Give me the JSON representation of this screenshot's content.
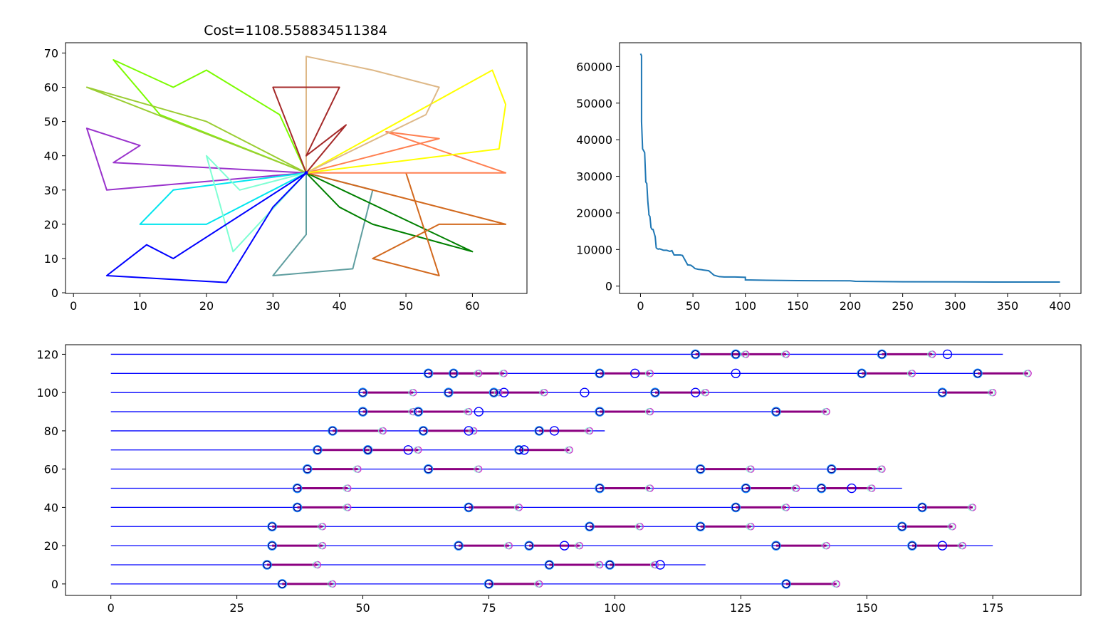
{
  "chart_data": [
    {
      "type": "line",
      "title": "Cost=1108.558834511384",
      "xlabel": "",
      "ylabel": "",
      "xlim": [
        -1.2,
        68.2
      ],
      "ylim": [
        -0.2,
        73.0
      ],
      "x_ticks": [
        "0",
        "10",
        "20",
        "30",
        "40",
        "50",
        "60"
      ],
      "y_ticks": [
        "0",
        "10",
        "20",
        "30",
        "40",
        "50",
        "60",
        "70"
      ],
      "depot": [
        35,
        35
      ],
      "routes": [
        {
          "color": "#7cfc00",
          "points": [
            [
              35,
              35
            ],
            [
              31,
              52
            ],
            [
              20,
              65
            ],
            [
              15,
              60
            ],
            [
              6,
              68
            ],
            [
              13,
              52
            ],
            [
              35,
              35
            ]
          ]
        },
        {
          "color": "#9acd32",
          "points": [
            [
              35,
              35
            ],
            [
              20,
              50
            ],
            [
              2,
              60
            ],
            [
              35,
              35
            ]
          ]
        },
        {
          "color": "#9932cc",
          "points": [
            [
              35,
              35
            ],
            [
              6,
              38
            ],
            [
              10,
              43
            ],
            [
              2,
              48
            ],
            [
              5,
              30
            ],
            [
              35,
              35
            ]
          ]
        },
        {
          "color": "#00e5ee",
          "points": [
            [
              35,
              35
            ],
            [
              15,
              30
            ],
            [
              10,
              20
            ],
            [
              20,
              20
            ],
            [
              35,
              35
            ]
          ]
        },
        {
          "color": "#7fffd4",
          "points": [
            [
              35,
              35
            ],
            [
              25,
              30
            ],
            [
              20,
              40
            ],
            [
              24,
              12
            ],
            [
              35,
              35
            ]
          ]
        },
        {
          "color": "#0000ff",
          "points": [
            [
              35,
              35
            ],
            [
              15,
              10
            ],
            [
              11,
              14
            ],
            [
              5,
              5
            ],
            [
              23,
              3
            ],
            [
              30,
              25
            ],
            [
              35,
              35
            ]
          ]
        },
        {
          "color": "#5f9ea0",
          "points": [
            [
              35,
              35
            ],
            [
              35,
              17
            ],
            [
              30,
              5
            ],
            [
              42,
              7
            ],
            [
              45,
              30
            ],
            [
              35,
              35
            ]
          ]
        },
        {
          "color": "#008000",
          "points": [
            [
              35,
              35
            ],
            [
              40,
              25
            ],
            [
              45,
              20
            ],
            [
              60,
              12
            ],
            [
              35,
              35
            ]
          ]
        },
        {
          "color": "#d2691e",
          "points": [
            [
              35,
              35
            ],
            [
              65,
              20
            ],
            [
              55,
              20
            ],
            [
              45,
              10
            ],
            [
              55,
              5
            ],
            [
              50,
              35
            ]
          ]
        },
        {
          "color": "#ff7f50",
          "points": [
            [
              35,
              35
            ],
            [
              55,
              45
            ],
            [
              47,
              47
            ],
            [
              65,
              35
            ],
            [
              35,
              35
            ]
          ]
        },
        {
          "color": "#ffff00",
          "points": [
            [
              35,
              35
            ],
            [
              63,
              65
            ],
            [
              65,
              55
            ],
            [
              64,
              42
            ],
            [
              35,
              35
            ]
          ]
        },
        {
          "color": "#deb887",
          "points": [
            [
              35,
              35
            ],
            [
              35,
              69
            ],
            [
              45,
              65
            ],
            [
              55,
              60
            ],
            [
              53,
              52
            ],
            [
              35,
              35
            ]
          ]
        },
        {
          "color": "#a52a2a",
          "points": [
            [
              35,
              35
            ],
            [
              30,
              60
            ],
            [
              40,
              60
            ],
            [
              35,
              40
            ],
            [
              41,
              49
            ],
            [
              35,
              35
            ]
          ]
        }
      ]
    },
    {
      "type": "line",
      "title": "",
      "xlabel": "",
      "ylabel": "",
      "xlim": [
        -20,
        420
      ],
      "ylim": [
        -2000,
        66500
      ],
      "x_ticks": [
        "0",
        "50",
        "100",
        "150",
        "200",
        "250",
        "300",
        "350",
        "400"
      ],
      "y_ticks": [
        "0",
        "10000",
        "20000",
        "30000",
        "40000",
        "50000",
        "60000"
      ],
      "color": "#1f77b4",
      "series": [
        {
          "x": [
            0,
            1,
            1,
            2,
            3,
            4,
            5,
            5,
            6,
            7,
            8,
            8,
            9,
            10,
            11,
            12,
            13,
            14,
            15,
            16,
            17,
            18,
            20,
            22,
            25,
            28,
            30,
            32,
            35,
            38,
            40,
            45,
            48,
            50,
            52,
            55,
            58,
            60,
            65,
            68,
            70,
            75,
            80,
            90,
            100,
            100,
            120,
            150,
            200,
            205,
            250,
            300,
            350,
            400
          ],
          "y": [
            63500,
            63000,
            45000,
            37500,
            37000,
            36500,
            29000,
            28500,
            28000,
            23000,
            20000,
            19500,
            19000,
            16000,
            15500,
            15500,
            14500,
            13500,
            10500,
            10200,
            10100,
            10200,
            10000,
            9800,
            9800,
            9500,
            9700,
            8500,
            8500,
            8500,
            8400,
            5800,
            5700,
            5300,
            4800,
            4600,
            4500,
            4400,
            4200,
            3500,
            3000,
            2600,
            2500,
            2500,
            2400,
            1700,
            1600,
            1500,
            1450,
            1300,
            1200,
            1150,
            1120,
            1108
          ]
        }
      ]
    },
    {
      "type": "timeline",
      "title": "",
      "xlabel": "",
      "ylabel": "",
      "xlim": [
        -9,
        192.5
      ],
      "ylim": [
        -6,
        125
      ],
      "x_ticks": [
        "0",
        "25",
        "50",
        "75",
        "100",
        "125",
        "150",
        "175"
      ],
      "y_ticks": [
        "0",
        "20",
        "40",
        "60",
        "80",
        "100",
        "120"
      ],
      "rows": [
        {
          "y": 0,
          "end": 144,
          "segs": [
            [
              34,
              44
            ],
            [
              75,
              85
            ],
            [
              134,
              144
            ]
          ],
          "extra": []
        },
        {
          "y": 10,
          "end": 118,
          "segs": [
            [
              31,
              41
            ],
            [
              87,
              97
            ],
            [
              99,
              108
            ]
          ],
          "extra": [
            [
              109,
              "#0000ff"
            ]
          ]
        },
        {
          "y": 20,
          "end": 175,
          "segs": [
            [
              32,
              42
            ],
            [
              69,
              79
            ],
            [
              83,
              93
            ],
            [
              132,
              142
            ],
            [
              159,
              169
            ]
          ],
          "extra": [
            [
              90,
              "#0000ff"
            ],
            [
              165,
              "#0000ff"
            ]
          ]
        },
        {
          "y": 30,
          "end": 167,
          "segs": [
            [
              32,
              42
            ],
            [
              95,
              105
            ],
            [
              117,
              127
            ],
            [
              157,
              167
            ]
          ],
          "extra": []
        },
        {
          "y": 40,
          "end": 171,
          "segs": [
            [
              37,
              47
            ],
            [
              71,
              81
            ],
            [
              124,
              134
            ],
            [
              161,
              171
            ]
          ],
          "extra": []
        },
        {
          "y": 50,
          "end": 157,
          "segs": [
            [
              37,
              47
            ],
            [
              97,
              107
            ],
            [
              126,
              136
            ],
            [
              141,
              151
            ]
          ],
          "extra": [
            [
              147,
              "#0000ff"
            ]
          ]
        },
        {
          "y": 60,
          "end": 153,
          "segs": [
            [
              39,
              49
            ],
            [
              63,
              73
            ],
            [
              117,
              127
            ],
            [
              143,
              153
            ]
          ],
          "extra": []
        },
        {
          "y": 70,
          "end": 91,
          "segs": [
            [
              41,
              51
            ],
            [
              51,
              61
            ],
            [
              81,
              91
            ]
          ],
          "extra": [
            [
              59,
              "#0000ff"
            ],
            [
              82,
              "#0000ff"
            ]
          ]
        },
        {
          "y": 80,
          "end": 98,
          "segs": [
            [
              44,
              54
            ],
            [
              62,
              72
            ],
            [
              85,
              95
            ]
          ],
          "extra": [
            [
              71,
              "#0000ff"
            ],
            [
              88,
              "#0000ff"
            ]
          ]
        },
        {
          "y": 90,
          "end": 142,
          "segs": [
            [
              50,
              60
            ],
            [
              61,
              71
            ],
            [
              97,
              107
            ],
            [
              132,
              142
            ]
          ],
          "extra": [
            [
              73,
              "#0000ff"
            ]
          ]
        },
        {
          "y": 100,
          "end": 175,
          "segs": [
            [
              50,
              60
            ],
            [
              67,
              77
            ],
            [
              76,
              86
            ],
            [
              108,
              118
            ],
            [
              165,
              175
            ]
          ],
          "extra": [
            [
              78,
              "#0000ff"
            ],
            [
              94,
              "#0000ff"
            ],
            [
              116,
              "#0000ff"
            ]
          ]
        },
        {
          "y": 110,
          "end": 182,
          "segs": [
            [
              63,
              73
            ],
            [
              68,
              78
            ],
            [
              97,
              107
            ],
            [
              149,
              159
            ],
            [
              172,
              182
            ]
          ],
          "extra": [
            [
              104,
              "#0000ff"
            ],
            [
              124,
              "#0000ff"
            ]
          ]
        },
        {
          "y": 120,
          "end": 177,
          "segs": [
            [
              116,
              126
            ],
            [
              124,
              134
            ],
            [
              153,
              163
            ]
          ],
          "extra": [
            [
              166,
              "#0000ff"
            ]
          ]
        }
      ]
    }
  ]
}
